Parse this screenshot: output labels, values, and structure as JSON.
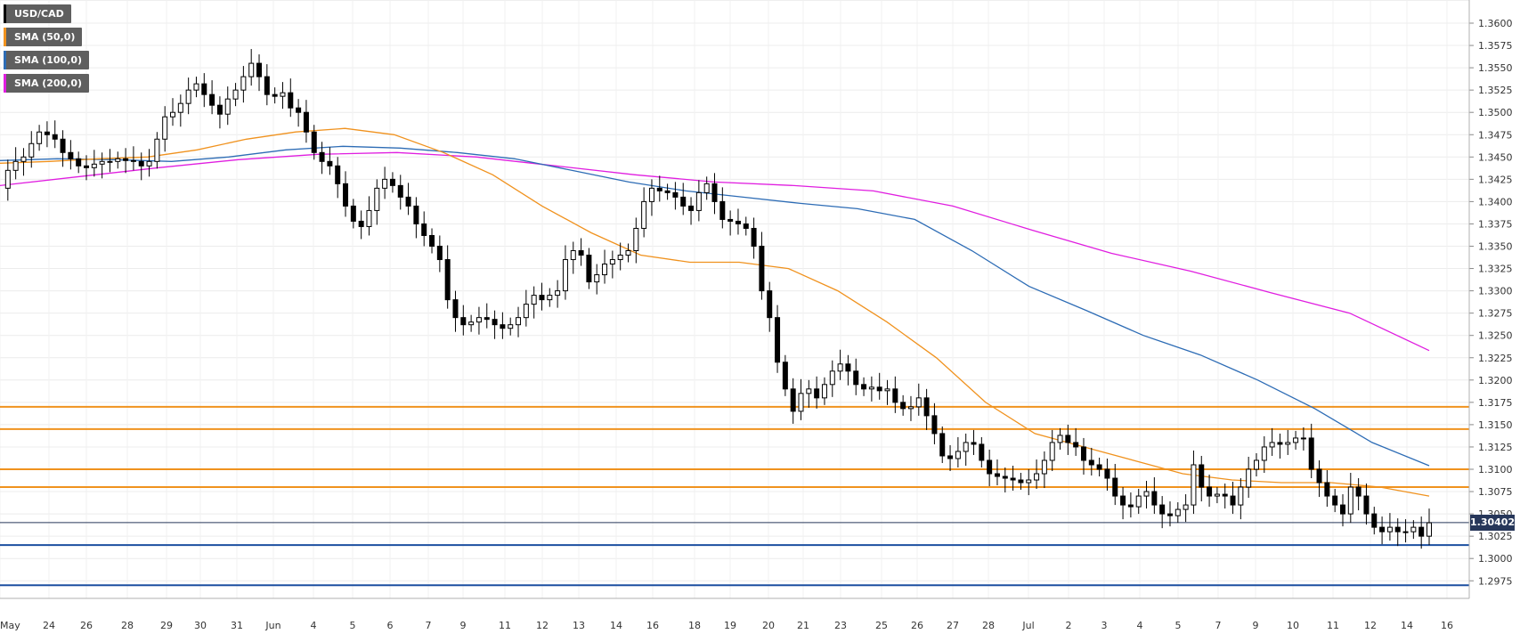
{
  "chart_data": {
    "type": "candlestick",
    "symbol": "USD/CAD",
    "legend": [
      {
        "label": "USD/CAD",
        "color": "#000000"
      },
      {
        "label": "SMA (50,0)",
        "color": "#f0921e"
      },
      {
        "label": "SMA (100,0)",
        "color": "#2d6cb5"
      },
      {
        "label": "SMA (200,0)",
        "color": "#e01ee0"
      }
    ],
    "y_ticks": [
      "1.3600",
      "1.3575",
      "1.3550",
      "1.3525",
      "1.3500",
      "1.3475",
      "1.3450",
      "1.3425",
      "1.3400",
      "1.3375",
      "1.3350",
      "1.3325",
      "1.3300",
      "1.3275",
      "1.3250",
      "1.3225",
      "1.3200",
      "1.3175",
      "1.3150",
      "1.3125",
      "1.3100",
      "1.3075",
      "1.3050",
      "1.3025",
      "1.3000",
      "1.2975"
    ],
    "ylim": [
      1.296,
      1.3615
    ],
    "x_ticks": [
      "May",
      "24",
      "26",
      "28",
      "29",
      "30",
      "31",
      "Jun",
      "4",
      "5",
      "6",
      "7",
      "9",
      "11",
      "12",
      "13",
      "14",
      "16",
      "18",
      "19",
      "20",
      "21",
      "23",
      "25",
      "26",
      "27",
      "28",
      "Jul",
      "2",
      "3",
      "4",
      "5",
      "7",
      "9",
      "10",
      "11",
      "12",
      "14",
      "16"
    ],
    "current_price": 1.30402,
    "current_price_label": "1.30402",
    "horizontal_levels": [
      {
        "value": 1.317,
        "color": "#f0921e"
      },
      {
        "value": 1.3145,
        "color": "#f0921e"
      },
      {
        "value": 1.31,
        "color": "#f0921e"
      },
      {
        "value": 1.308,
        "color": "#f0921e"
      },
      {
        "value": 1.3015,
        "color": "#1c4fa0"
      },
      {
        "value": 1.297,
        "color": "#1c4fa0"
      }
    ],
    "price_path": [
      1.3415,
      1.3435,
      1.3445,
      1.345,
      1.3465,
      1.3478,
      1.3475,
      1.347,
      1.3455,
      1.3448,
      1.344,
      1.3438,
      1.3442,
      1.3445,
      1.3445,
      1.3448,
      1.3446,
      1.3445,
      1.344,
      1.3445,
      1.347,
      1.3495,
      1.35,
      1.351,
      1.3525,
      1.3532,
      1.352,
      1.3508,
      1.3498,
      1.3515,
      1.3525,
      1.354,
      1.3555,
      1.354,
      1.352,
      1.3518,
      1.3522,
      1.3505,
      1.35,
      1.3478,
      1.3455,
      1.3445,
      1.344,
      1.342,
      1.3395,
      1.3378,
      1.3372,
      1.339,
      1.3415,
      1.3425,
      1.3418,
      1.3405,
      1.3395,
      1.3375,
      1.3362,
      1.335,
      1.3335,
      1.329,
      1.327,
      1.3262,
      1.3265,
      1.327,
      1.3268,
      1.3262,
      1.3258,
      1.3262,
      1.327,
      1.3285,
      1.3295,
      1.329,
      1.3295,
      1.33,
      1.3335,
      1.3345,
      1.334,
      1.331,
      1.3318,
      1.333,
      1.3335,
      1.334,
      1.3345,
      1.337,
      1.34,
      1.3415,
      1.3412,
      1.341,
      1.3405,
      1.3395,
      1.339,
      1.341,
      1.342,
      1.34,
      1.338,
      1.3378,
      1.3375,
      1.337,
      1.335,
      1.33,
      1.327,
      1.322,
      1.319,
      1.3165,
      1.3185,
      1.319,
      1.318,
      1.3195,
      1.321,
      1.3218,
      1.321,
      1.3195,
      1.319,
      1.3192,
      1.3188,
      1.319,
      1.3175,
      1.3168,
      1.317,
      1.318,
      1.316,
      1.314,
      1.3115,
      1.3112,
      1.312,
      1.313,
      1.3128,
      1.311,
      1.3095,
      1.3092,
      1.309,
      1.3088,
      1.3085,
      1.3088,
      1.3095,
      1.311,
      1.313,
      1.3138,
      1.313,
      1.3125,
      1.311,
      1.3105,
      1.31,
      1.309,
      1.307,
      1.306,
      1.3058,
      1.307,
      1.3075,
      1.306,
      1.305,
      1.3048,
      1.3055,
      1.306,
      1.3105,
      1.308,
      1.307,
      1.3072,
      1.307,
      1.306,
      1.308,
      1.31,
      1.311,
      1.3125,
      1.313,
      1.3128,
      1.313,
      1.3135,
      1.3135,
      1.31,
      1.3085,
      1.307,
      1.306,
      1.305,
      1.308,
      1.307,
      1.305,
      1.3035,
      1.303,
      1.3035,
      1.303,
      1.303,
      1.3035,
      1.3025,
      1.304
    ],
    "sma50": [
      1.3443,
      1.3445,
      1.3448,
      1.345,
      1.3458,
      1.347,
      1.3478,
      1.3482,
      1.3475,
      1.3455,
      1.343,
      1.3395,
      1.3365,
      1.334,
      1.3332,
      1.3332,
      1.3325,
      1.33,
      1.3265,
      1.3225,
      1.3175,
      1.314,
      1.3125,
      1.311,
      1.3095,
      1.3088,
      1.3085,
      1.3085,
      1.308,
      1.307
    ],
    "sma100": [
      1.3446,
      1.3448,
      1.3447,
      1.3445,
      1.345,
      1.3458,
      1.3462,
      1.346,
      1.3455,
      1.3448,
      1.3435,
      1.3422,
      1.3412,
      1.3405,
      1.3398,
      1.3392,
      1.338,
      1.3345,
      1.3305,
      1.3278,
      1.325,
      1.3228,
      1.32,
      1.3168,
      1.313,
      1.3104
    ],
    "sma200": [
      1.3418,
      1.3428,
      1.3438,
      1.3447,
      1.3453,
      1.3455,
      1.345,
      1.344,
      1.343,
      1.3422,
      1.3418,
      1.3412,
      1.3395,
      1.3368,
      1.3342,
      1.3322,
      1.3298,
      1.3275,
      1.3233
    ]
  }
}
